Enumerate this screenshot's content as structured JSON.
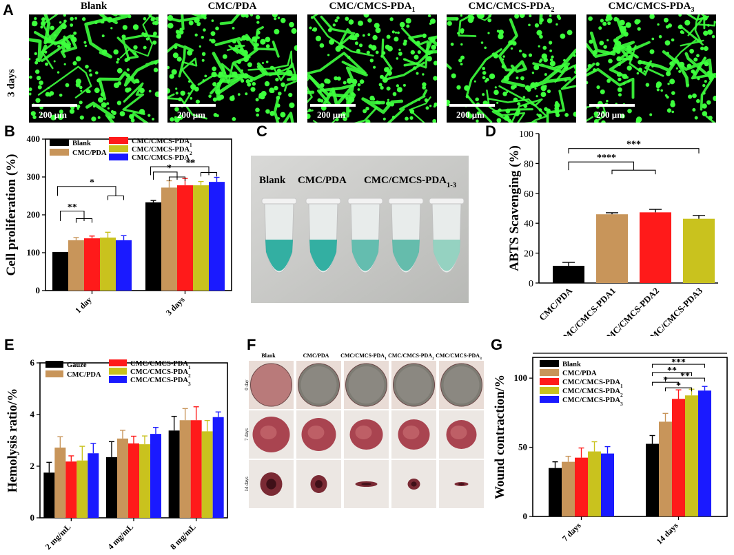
{
  "panels": {
    "a": {
      "letter": "A",
      "row_label": "3 days",
      "scale_bar": "200 μm",
      "groups": [
        {
          "name": "Blank",
          "sub": ""
        },
        {
          "name": "CMC/PDA",
          "sub": ""
        },
        {
          "name": "CMC/CMCS-PDA",
          "sub": "1"
        },
        {
          "name": "CMC/CMCS-PDA",
          "sub": "2"
        },
        {
          "name": "CMC/CMCS-PDA",
          "sub": "3"
        }
      ]
    },
    "c": {
      "letter": "C",
      "labels": [
        "Blank",
        "CMC/PDA",
        "CMC/CMCS-PDA"
      ],
      "label_sub": "1-3"
    },
    "f": {
      "letter": "F",
      "columns": [
        {
          "name": "Blank",
          "sub": ""
        },
        {
          "name": "CMC/PDA",
          "sub": ""
        },
        {
          "name": "CMC/CMCS-PDA",
          "sub": "1"
        },
        {
          "name": "CMC/CMCS-PDA",
          "sub": "2"
        },
        {
          "name": "CMC/CMCS-PDA",
          "sub": "3"
        }
      ],
      "rows": [
        "0 day",
        "7 days",
        "14 days"
      ]
    }
  },
  "colors": {
    "black": "#000000",
    "tan": "#c8955a",
    "red": "#ff1a1a",
    "olive": "#c9c21e",
    "blue": "#1a1aff",
    "fluorescence": "#3dff3d"
  },
  "chart_data": [
    {
      "id": "B",
      "letter": "B",
      "type": "bar",
      "ylabel": "Cell proliferation (%)",
      "ylim": [
        0,
        400
      ],
      "yticks": [
        0,
        100,
        200,
        300,
        400
      ],
      "categories": [
        "1 day",
        "3 days"
      ],
      "legend": [
        {
          "name": "Blank",
          "sub": ""
        },
        {
          "name": "CMC/PDA",
          "sub": ""
        },
        {
          "name": "CMC/CMCS-PDA",
          "sub": "1"
        },
        {
          "name": "CMC/CMCS-PDA",
          "sub": "2"
        },
        {
          "name": "CMC/CMCS-PDA",
          "sub": "3"
        }
      ],
      "series": [
        {
          "values": [
            102,
            233
          ],
          "errors": [
            0,
            5
          ]
        },
        {
          "values": [
            133,
            272
          ],
          "errors": [
            7,
            18
          ]
        },
        {
          "values": [
            138,
            278
          ],
          "errors": [
            6,
            18
          ]
        },
        {
          "values": [
            140,
            278
          ],
          "errors": [
            14,
            10
          ]
        },
        {
          "values": [
            133,
            287
          ],
          "errors": [
            12,
            12
          ]
        }
      ],
      "significance": [
        "**",
        "*",
        "*",
        "**"
      ]
    },
    {
      "id": "D",
      "letter": "D",
      "type": "bar",
      "ylabel": "ABTS Scavenging (%)",
      "ylim": [
        0,
        100
      ],
      "yticks": [
        0,
        20,
        40,
        60,
        80,
        100
      ],
      "categories": [
        "CMC/PDA",
        "CMC/CMCS-PDA1",
        "CMC/CMCS-PDA2",
        "CMC/CMCS-PDA3"
      ],
      "values": [
        11.5,
        46,
        47.3,
        43
      ],
      "errors": [
        2.3,
        1.0,
        2.0,
        2.2
      ],
      "significance": [
        "****",
        "***"
      ]
    },
    {
      "id": "E",
      "letter": "E",
      "type": "bar",
      "ylabel": "Hemolysis ratio/%",
      "ylim": [
        0,
        6
      ],
      "yticks": [
        0,
        2,
        4,
        6
      ],
      "categories": [
        "2 mg/mL",
        "4 mg/mL",
        "8 mg/mL"
      ],
      "legend": [
        {
          "name": "Gauze",
          "sub": ""
        },
        {
          "name": "CMC/PDA",
          "sub": ""
        },
        {
          "name": "CMC/CMCS-PDA",
          "sub": "1"
        },
        {
          "name": "CMC/CMCS-PDA",
          "sub": "2"
        },
        {
          "name": "CMC/CMCS-PDA",
          "sub": "3"
        }
      ],
      "series": [
        {
          "values": [
            1.75,
            2.35,
            3.38
          ],
          "errors": [
            0.4,
            0.6,
            0.55
          ]
        },
        {
          "values": [
            2.72,
            3.07,
            3.78
          ],
          "errors": [
            0.42,
            0.32,
            0.45
          ]
        },
        {
          "values": [
            2.18,
            2.88,
            3.78
          ],
          "errors": [
            0.22,
            0.28,
            0.52
          ]
        },
        {
          "values": [
            2.22,
            2.85,
            3.35
          ],
          "errors": [
            0.55,
            0.32,
            0.42
          ]
        },
        {
          "values": [
            2.5,
            3.25,
            3.9
          ],
          "errors": [
            0.38,
            0.25,
            0.2
          ]
        }
      ]
    },
    {
      "id": "G",
      "letter": "G",
      "type": "bar",
      "ylabel": "Wound contraction/%",
      "ylim": [
        0,
        115
      ],
      "yticks": [
        0,
        50,
        100
      ],
      "categories": [
        "7 days",
        "14 days"
      ],
      "legend": [
        {
          "name": "Blank",
          "sub": ""
        },
        {
          "name": "CMC/PDA",
          "sub": ""
        },
        {
          "name": "CMC/CMCS-PDA",
          "sub": "1"
        },
        {
          "name": "CMC/CMCS-PDA",
          "sub": "2"
        },
        {
          "name": "CMC/CMCS-PDA",
          "sub": "3"
        }
      ],
      "series": [
        {
          "values": [
            35,
            52.5
          ],
          "errors": [
            4.5,
            6
          ]
        },
        {
          "values": [
            39.5,
            68.5
          ],
          "errors": [
            4,
            6
          ]
        },
        {
          "values": [
            42.5,
            85
          ],
          "errors": [
            7,
            6.5
          ]
        },
        {
          "values": [
            47,
            87.5
          ],
          "errors": [
            7,
            4.5
          ]
        },
        {
          "values": [
            45.5,
            91
          ],
          "errors": [
            5,
            3
          ]
        }
      ],
      "significance": [
        "***",
        "**",
        "*",
        "**",
        "*"
      ]
    }
  ]
}
